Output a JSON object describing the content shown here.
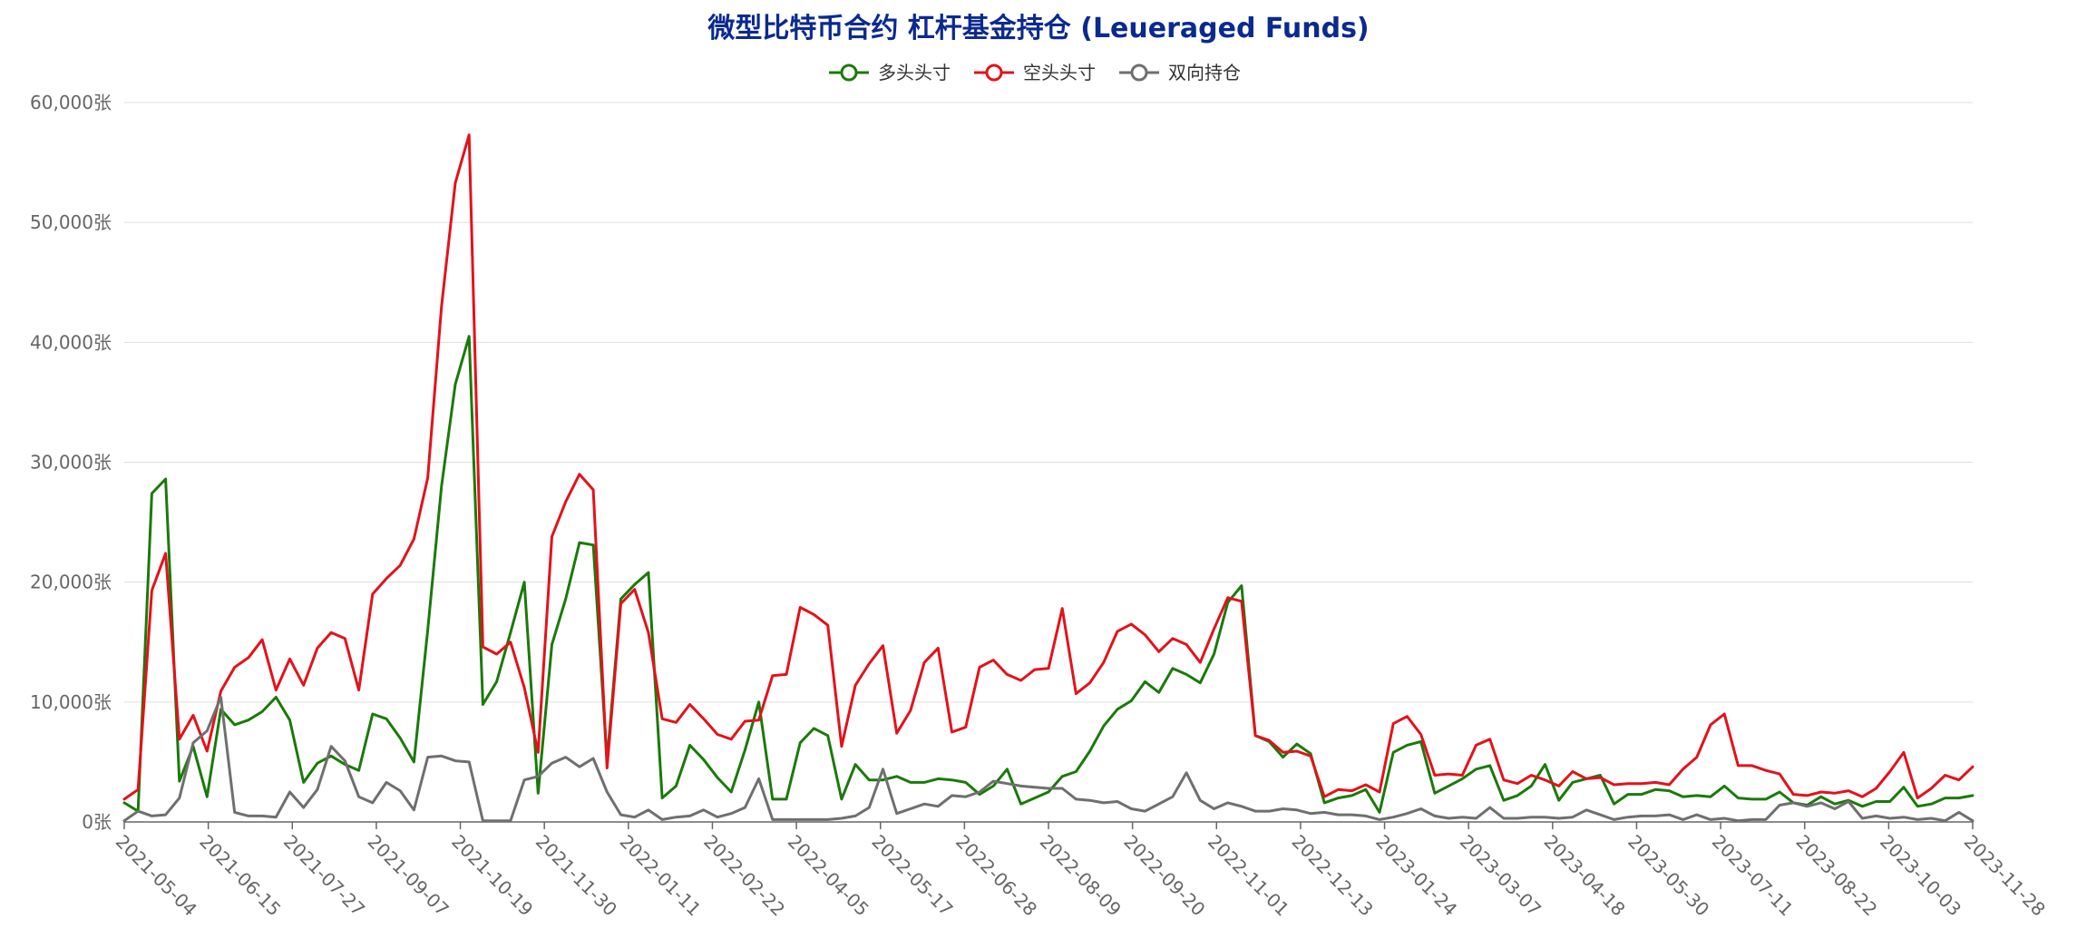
{
  "chart_data": {
    "type": "line",
    "title": "微型比特币合约 杠杆基金持仓 (Leueraged Funds)",
    "ylim": [
      0,
      60000
    ],
    "yticks": [
      0,
      10000,
      20000,
      30000,
      40000,
      50000,
      60000
    ],
    "ytick_labels": [
      "0张",
      "10,000张",
      "20,000张",
      "30,000张",
      "40,000张",
      "50,000张",
      "60,000张"
    ],
    "xtick_labels": [
      "2021-05-04",
      "2021-06-15",
      "2021-07-27",
      "2021-09-07",
      "2021-10-19",
      "2021-11-30",
      "2022-01-11",
      "2022-02-22",
      "2022-04-05",
      "2022-05-17",
      "2022-06-28",
      "2022-08-09",
      "2022-09-20",
      "2022-11-01",
      "2022-12-13",
      "2023-01-24",
      "2023-03-07",
      "2023-04-18",
      "2023-05-30",
      "2023-07-11",
      "2023-08-22",
      "2023-10-03",
      "2023-11-28"
    ],
    "grid": true,
    "legend_position": "top-center",
    "series": [
      {
        "name": "多头头寸",
        "color": "#1a7a0a",
        "values": [
          1600,
          900,
          27400,
          28600,
          3400,
          6300,
          2100,
          9400,
          8100,
          8500,
          9200,
          10400,
          8500,
          3300,
          4900,
          5500,
          4800,
          4300,
          9000,
          8600,
          7000,
          5000,
          16000,
          28000,
          36500,
          40500,
          9800,
          11700,
          15800,
          20000,
          2400,
          14800,
          18600,
          23300,
          23100,
          5100,
          18600,
          19800,
          20800,
          2000,
          3000,
          6400,
          5200,
          3700,
          2500,
          6000,
          10000,
          1900,
          1900,
          6600,
          7800,
          7200,
          1900,
          4800,
          3500,
          3500,
          3800,
          3300,
          3300,
          3600,
          3500,
          3300,
          2300,
          3000,
          4400,
          1500,
          2000,
          2500,
          3800,
          4200,
          5900,
          8000,
          9400,
          10100,
          11700,
          10800,
          12800,
          12300,
          11600,
          14000,
          18300,
          19700,
          7200,
          6700,
          5400,
          6500,
          5700,
          1600,
          2000,
          2200,
          2700,
          800,
          5800,
          6400,
          6700,
          2400,
          3000,
          3600,
          4400,
          4700,
          1800,
          2200,
          3000,
          4800,
          1800,
          3300,
          3600,
          3900,
          1500,
          2300,
          2300,
          2700,
          2600,
          2100,
          2200,
          2100,
          3000,
          2000,
          1900,
          1900,
          2500,
          1600,
          1400,
          2100,
          1500,
          1800,
          1300,
          1700,
          1700,
          2900,
          1300,
          1500,
          2000,
          2000,
          2200
        ]
      },
      {
        "name": "空头头寸",
        "color": "#e3121b",
        "values": [
          1900,
          2700,
          19300,
          22400,
          6900,
          8900,
          5900,
          10900,
          12900,
          13700,
          15200,
          11000,
          13600,
          11400,
          14500,
          15800,
          15300,
          11000,
          19000,
          20300,
          21400,
          23600,
          28700,
          43000,
          53300,
          57300,
          14600,
          14000,
          15000,
          11200,
          5800,
          23800,
          26700,
          29000,
          27700,
          4500,
          18200,
          19400,
          15800,
          8600,
          8300,
          9800,
          8600,
          7300,
          6900,
          8400,
          8500,
          12200,
          12300,
          17900,
          17300,
          16400,
          6300,
          11400,
          13200,
          14700,
          7400,
          9300,
          13300,
          14500,
          7500,
          7900,
          12900,
          13500,
          12300,
          11800,
          12700,
          12800,
          17800,
          10700,
          11600,
          13300,
          15900,
          16500,
          15600,
          14200,
          15300,
          14800,
          13300,
          16100,
          18700,
          18400,
          7200,
          6800,
          5800,
          5900,
          5500,
          2100,
          2700,
          2600,
          3100,
          2500,
          8200,
          8800,
          7300,
          3900,
          4000,
          3900,
          6400,
          6900,
          3500,
          3200,
          3900,
          3500,
          3000,
          4200,
          3600,
          3700,
          3100,
          3200,
          3200,
          3300,
          3100,
          4400,
          5400,
          8100,
          9000,
          4700,
          4700,
          4300,
          4000,
          2300,
          2200,
          2500,
          2400,
          2600,
          2100,
          2800,
          4200,
          5800,
          2000,
          2800,
          3900,
          3500,
          4600
        ]
      },
      {
        "name": "双向持仓",
        "color": "#6f6f6f",
        "values": [
          100,
          900,
          500,
          600,
          2000,
          6600,
          7600,
          10400,
          800,
          500,
          500,
          400,
          2500,
          1200,
          2700,
          6300,
          5100,
          2100,
          1600,
          3300,
          2600,
          1000,
          5400,
          5500,
          5100,
          5000,
          100,
          100,
          100,
          3500,
          3800,
          4900,
          5400,
          4600,
          5300,
          2500,
          600,
          400,
          1000,
          200,
          400,
          500,
          1000,
          400,
          700,
          1200,
          3600,
          200,
          200,
          200,
          200,
          200,
          300,
          500,
          1200,
          4400,
          700,
          1100,
          1500,
          1300,
          2200,
          2100,
          2500,
          3400,
          3200,
          3000,
          2900,
          2800,
          2800,
          1900,
          1800,
          1600,
          1700,
          1100,
          900,
          1500,
          2100,
          4100,
          1800,
          1100,
          1600,
          1300,
          900,
          900,
          1100,
          1000,
          700,
          800,
          600,
          600,
          500,
          200,
          400,
          700,
          1100,
          500,
          300,
          400,
          300,
          1200,
          300,
          300,
          400,
          400,
          300,
          400,
          1000,
          600,
          200,
          400,
          500,
          500,
          600,
          200,
          600,
          200,
          300,
          100,
          200,
          200,
          1400,
          1600,
          1300,
          1600,
          1100,
          1700,
          300,
          500,
          300,
          400,
          200,
          300,
          100,
          800,
          100
        ]
      }
    ]
  }
}
